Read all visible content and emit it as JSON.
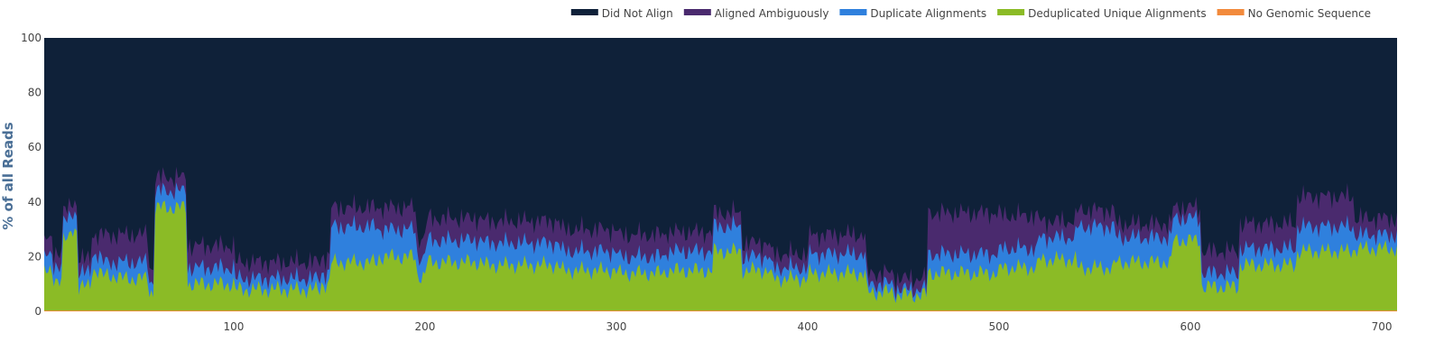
{
  "chart_data": {
    "type": "area",
    "stacked": true,
    "normalized_percent": true,
    "xlabel": "",
    "ylabel": "% of all Reads",
    "xlim": [
      1,
      708
    ],
    "ylim": [
      0,
      100
    ],
    "x_ticks": [
      100,
      200,
      300,
      400,
      500,
      600,
      700
    ],
    "y_ticks": [
      0,
      20,
      40,
      60,
      80,
      100
    ],
    "grid": false,
    "legend_position": "top-right",
    "series_order_bottom_to_top": [
      "No Genomic Sequence",
      "Deduplicated Unique Alignments",
      "Duplicate Alignments",
      "Aligned Ambiguously",
      "Did Not Align"
    ],
    "series": [
      {
        "name": "Did Not Align",
        "color": "#0f2139",
        "fill_to": 100
      },
      {
        "name": "Aligned Ambiguously",
        "color": "#4a2a6e"
      },
      {
        "name": "Duplicate Alignments",
        "color": "#2f80dd"
      },
      {
        "name": "Deduplicated Unique Alignments",
        "color": "#8bbb26"
      },
      {
        "name": "No Genomic Sequence",
        "color": "#f28a3c",
        "values_all": 0.3
      }
    ],
    "segments_stacked_top": [
      {
        "x": [
          1,
          5
        ],
        "dedup": 14,
        "dup": 20,
        "amb": 26
      },
      {
        "x": [
          6,
          10
        ],
        "dedup": 12,
        "dup": 17,
        "amb": 22
      },
      {
        "x": [
          11,
          14
        ],
        "dedup": 26,
        "dup": 33,
        "amb": 37
      },
      {
        "x": [
          15,
          18
        ],
        "dedup": 30,
        "dup": 36,
        "amb": 40
      },
      {
        "x": [
          19,
          25
        ],
        "dedup": 9,
        "dup": 14,
        "amb": 19
      },
      {
        "x": [
          26,
          30
        ],
        "dedup": 15,
        "dup": 21,
        "amb": 28
      },
      {
        "x": [
          31,
          40
        ],
        "dedup": 13,
        "dup": 18,
        "amb": 28
      },
      {
        "x": [
          41,
          55
        ],
        "dedup": 12,
        "dup": 18,
        "amb": 28
      },
      {
        "x": [
          56,
          58
        ],
        "dedup": 7,
        "dup": 11,
        "amb": 16
      },
      {
        "x": [
          59,
          75
        ],
        "dedup": 38,
        "dup": 44,
        "amb": 49
      },
      {
        "x": [
          76,
          100
        ],
        "dedup": 10,
        "dup": 16,
        "amb": 24
      },
      {
        "x": [
          101,
          145
        ],
        "dedup": 8,
        "dup": 12,
        "amb": 18
      },
      {
        "x": [
          146,
          150
        ],
        "dedup": 10,
        "dup": 14,
        "amb": 20
      },
      {
        "x": [
          151,
          175
        ],
        "dedup": 18,
        "dup": 31,
        "amb": 38
      },
      {
        "x": [
          176,
          195
        ],
        "dedup": 20,
        "dup": 30,
        "amb": 38
      },
      {
        "x": [
          196,
          200
        ],
        "dedup": 13,
        "dup": 20,
        "amb": 27
      },
      {
        "x": [
          201,
          230
        ],
        "dedup": 18,
        "dup": 26,
        "amb": 34
      },
      {
        "x": [
          231,
          270
        ],
        "dedup": 17,
        "dup": 25,
        "amb": 33
      },
      {
        "x": [
          271,
          300
        ],
        "dedup": 15,
        "dup": 22,
        "amb": 30
      },
      {
        "x": [
          301,
          325
        ],
        "dedup": 14,
        "dup": 20,
        "amb": 28
      },
      {
        "x": [
          326,
          350
        ],
        "dedup": 15,
        "dup": 22,
        "amb": 29
      },
      {
        "x": [
          351,
          365
        ],
        "dedup": 22,
        "dup": 31,
        "amb": 36
      },
      {
        "x": [
          366,
          380
        ],
        "dedup": 15,
        "dup": 20,
        "amb": 25
      },
      {
        "x": [
          381,
          400
        ],
        "dedup": 12,
        "dup": 16,
        "amb": 21
      },
      {
        "x": [
          401,
          430
        ],
        "dedup": 14,
        "dup": 21,
        "amb": 28
      },
      {
        "x": [
          431,
          445
        ],
        "dedup": 7,
        "dup": 10,
        "amb": 14
      },
      {
        "x": [
          446,
          462
        ],
        "dedup": 6,
        "dup": 8,
        "amb": 12
      },
      {
        "x": [
          463,
          500
        ],
        "dedup": 14,
        "dup": 21,
        "amb": 36
      },
      {
        "x": [
          501,
          520
        ],
        "dedup": 16,
        "dup": 23,
        "amb": 35
      },
      {
        "x": [
          521,
          540
        ],
        "dedup": 19,
        "dup": 27,
        "amb": 33
      },
      {
        "x": [
          541,
          560
        ],
        "dedup": 16,
        "dup": 31,
        "amb": 37
      },
      {
        "x": [
          561,
          590
        ],
        "dedup": 18,
        "dup": 27,
        "amb": 32
      },
      {
        "x": [
          591,
          605
        ],
        "dedup": 26,
        "dup": 34,
        "amb": 38
      },
      {
        "x": [
          606,
          625
        ],
        "dedup": 9,
        "dup": 14,
        "amb": 22
      },
      {
        "x": [
          626,
          655
        ],
        "dedup": 17,
        "dup": 23,
        "amb": 32
      },
      {
        "x": [
          656,
          685
        ],
        "dedup": 22,
        "dup": 31,
        "amb": 42
      },
      {
        "x": [
          686,
          708
        ],
        "dedup": 23,
        "dup": 28,
        "amb": 34
      }
    ]
  }
}
